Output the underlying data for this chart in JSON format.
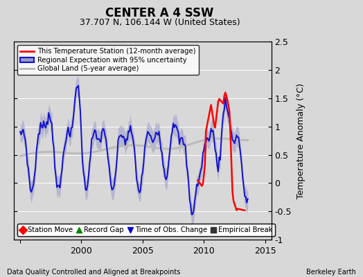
{
  "title": "CENTER A 4 SSW",
  "subtitle": "37.707 N, 106.144 W (United States)",
  "ylabel": "Temperature Anomaly (°C)",
  "xlabel_left": "Data Quality Controlled and Aligned at Breakpoints",
  "xlabel_right": "Berkeley Earth",
  "ylim": [
    -1.0,
    2.5
  ],
  "xlim": [
    1994.5,
    2015.5
  ],
  "yticks": [
    -1,
    -0.5,
    0,
    0.5,
    1,
    1.5,
    2,
    2.5
  ],
  "xticks": [
    1995,
    2000,
    2005,
    2010,
    2015
  ],
  "xtick_labels": [
    "",
    "2000",
    "2005",
    "2010",
    "2015"
  ],
  "background_color": "#d8d8d8",
  "plot_bg_color": "#d8d8d8",
  "red_color": "#ff0000",
  "blue_color": "#1111cc",
  "blue_fill_color": "#9999cc",
  "gray_color": "#bbbbbb",
  "legend1_labels": [
    "This Temperature Station (12-month average)",
    "Regional Expectation with 95% uncertainty",
    "Global Land (5-year average)"
  ],
  "legend2_labels": [
    "Station Move",
    "Record Gap",
    "Time of Obs. Change",
    "Empirical Break"
  ],
  "legend2_colors": [
    "#ff0000",
    "#008800",
    "#0000cc",
    "#333333"
  ]
}
